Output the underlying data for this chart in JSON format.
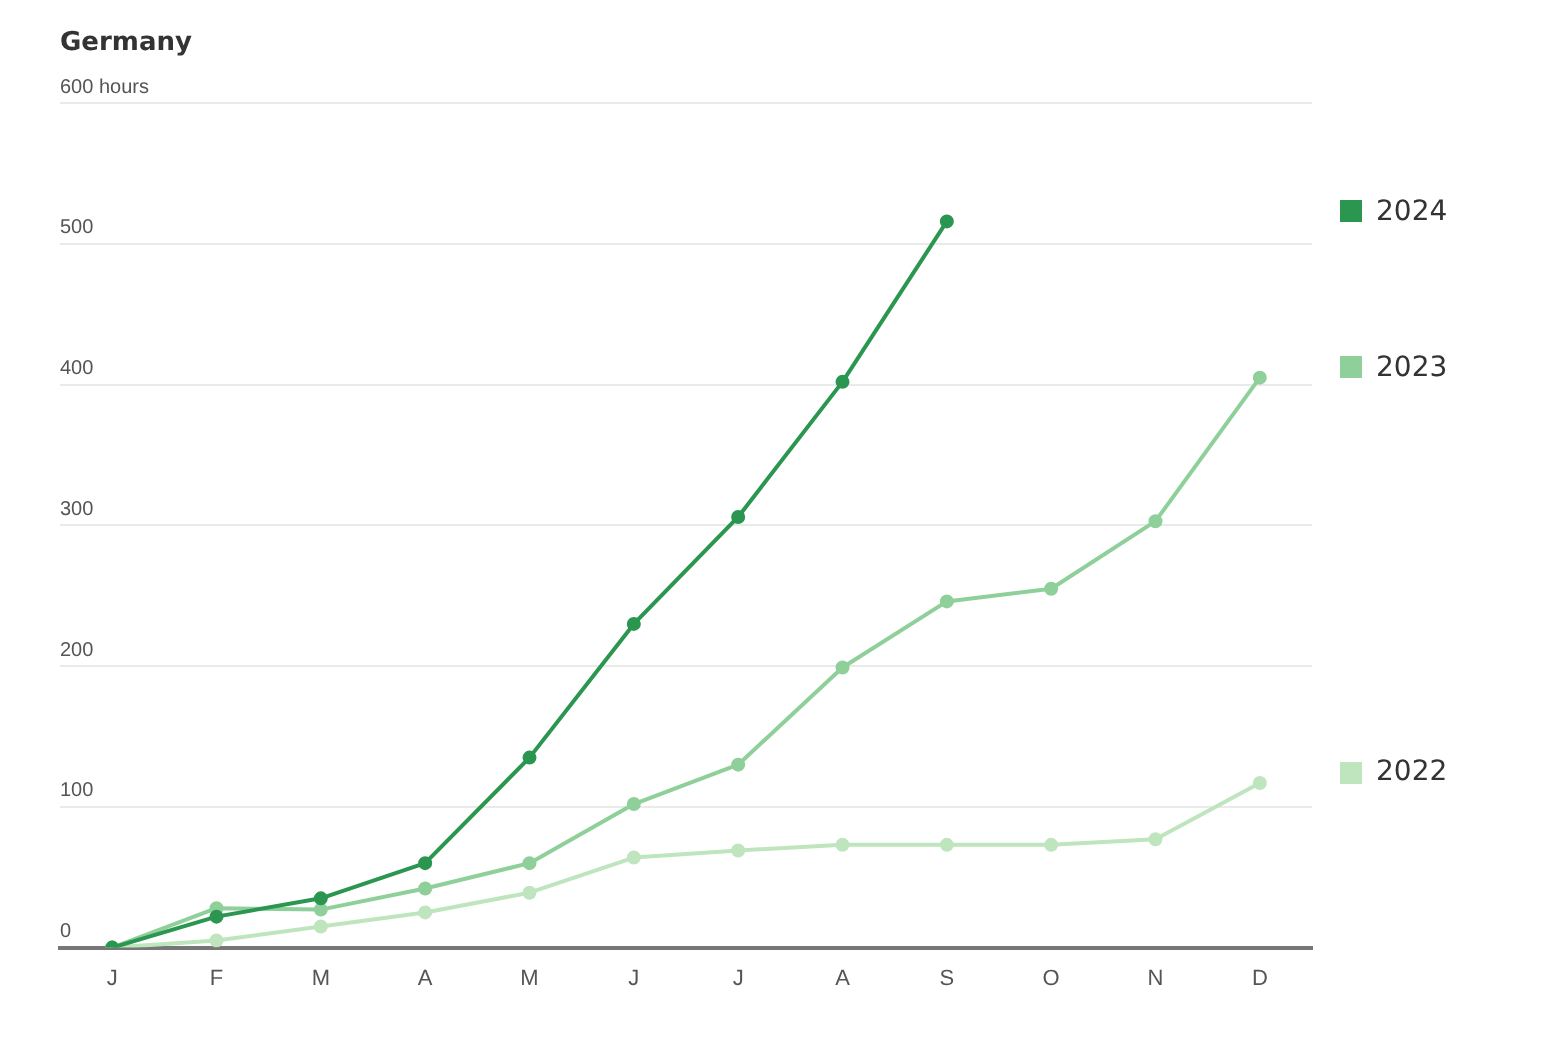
{
  "chart_data": {
    "type": "line",
    "title": "Germany",
    "categories": [
      "J",
      "F",
      "M",
      "A",
      "M",
      "J",
      "J",
      "A",
      "S",
      "O",
      "N",
      "D"
    ],
    "series": [
      {
        "name": "2024",
        "color": "#2a9650",
        "values": [
          0,
          22,
          35,
          60,
          135,
          230,
          306,
          402,
          516,
          null,
          null,
          null
        ]
      },
      {
        "name": "2023",
        "color": "#8fd09a",
        "values": [
          0,
          28,
          27,
          42,
          60,
          102,
          130,
          199,
          246,
          255,
          303,
          405
        ]
      },
      {
        "name": "2022",
        "color": "#bfe5bf",
        "values": [
          0,
          5,
          15,
          25,
          39,
          64,
          69,
          73,
          73,
          73,
          77,
          117
        ]
      }
    ],
    "ylim": [
      0,
      600
    ],
    "yticks": [
      0,
      100,
      200,
      300,
      400,
      500,
      {
        "value": 600,
        "label": "600 hours"
      }
    ],
    "grid": "y",
    "legend": "right",
    "marker": "circle",
    "line_style": "solid"
  }
}
